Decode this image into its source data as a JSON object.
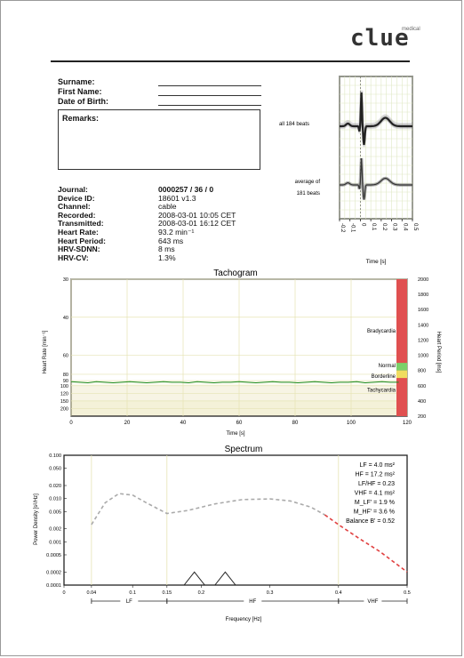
{
  "brand": {
    "logo_text": "clue",
    "logo_sub": "medical"
  },
  "patient": {
    "surname_label": "Surname:",
    "first_name_label": "First Name:",
    "dob_label": "Date of Birth:",
    "remarks_label": "Remarks:"
  },
  "info": [
    {
      "label": "Journal:",
      "value": "0000257 / 36 / 0",
      "bold_value": true
    },
    {
      "label": "Device ID:",
      "value": "18601 v1.3"
    },
    {
      "label": "Channel:",
      "value": "cable"
    },
    {
      "label": "Recorded:",
      "value": "2008-03-01 10:05 CET"
    },
    {
      "label": "Transmitted:",
      "value": "2008-03-01 16:12 CET"
    },
    {
      "label": "Heart Rate:",
      "value": "93.2 min⁻¹"
    },
    {
      "label": "Heart Period:",
      "value": "643 ms"
    },
    {
      "label": "HRV-SDNN:",
      "value": "8 ms"
    },
    {
      "label": "HRV-CV:",
      "value": "1.3%"
    }
  ],
  "beats": {
    "label_all": "all 184 beats",
    "label_avg_1": "average of",
    "label_avg_2": "181 beats",
    "xlabel": "Time [s]",
    "xticks": [
      "-0.2",
      "-0.1",
      "0",
      "0.1",
      "0.2",
      "0.3",
      "0.4",
      "0.5"
    ]
  },
  "tachogram": {
    "title": "Tachogram",
    "xlabel": "Time [s]",
    "ylabel_left": "Heart Rate [min⁻¹]",
    "ylabel_right": "Heart Period [ms]",
    "zones": [
      "Bradycardia",
      "Normal",
      "Borderline",
      "Tachycardia"
    ]
  },
  "spectrum": {
    "title": "Spectrum",
    "xlabel": "Frequency [Hz]",
    "ylabel": "Power Density [s²/Hz]",
    "bands": [
      "LF",
      "HF",
      "VHF"
    ],
    "stats": [
      {
        "id": "lf",
        "text": "LF = 4.0 ms²"
      },
      {
        "id": "hf",
        "text": "HF = 17.2 ms²"
      },
      {
        "id": "lfhf",
        "text": "LF/HF = 0.23"
      },
      {
        "id": "vhf",
        "text": "VHF = 4.1 ms²"
      },
      {
        "id": "mlf",
        "text": "M_LF' = 1.9 %"
      },
      {
        "id": "mhf",
        "text": "M_HF' = 3.6 %"
      },
      {
        "id": "balance",
        "text": "Balance B' = 0.52"
      }
    ]
  },
  "chart_data": [
    {
      "type": "line",
      "title": "Tachogram",
      "xlabel": "Time [s]",
      "ylabel": "Heart Rate [min⁻¹]",
      "xlim": [
        0,
        120
      ],
      "xticks": [
        0,
        20,
        40,
        60,
        80,
        100,
        120
      ],
      "yticks_left": [
        30,
        40,
        60,
        80,
        90,
        100,
        120,
        150,
        200
      ],
      "yticks_right": [
        200,
        400,
        600,
        800,
        1000,
        1200,
        1400,
        1600,
        1800,
        2000
      ],
      "ylim_right": [
        200,
        2000
      ],
      "series": [
        {
          "values": [
            92,
            93,
            94,
            92,
            93,
            94,
            93,
            92,
            93,
            94,
            93,
            92,
            93,
            93,
            94,
            92,
            93,
            94,
            93,
            93,
            92,
            93,
            94,
            93,
            92,
            93,
            93,
            94,
            93,
            92,
            93,
            94,
            93,
            93,
            92,
            94,
            93,
            92,
            93,
            93
          ]
        }
      ]
    },
    {
      "type": "line",
      "title": "Spectrum",
      "xlabel": "Frequency [Hz]",
      "ylabel": "Power Density [s²/Hz]",
      "xlim": [
        0,
        0.5
      ],
      "xticks": [
        0,
        0.04,
        0.1,
        0.15,
        0.2,
        0.3,
        0.4,
        0.5
      ],
      "yscale": "log",
      "ylim": [
        0.0001,
        0.1
      ],
      "yticks": [
        "0.0001",
        "0.0002",
        "0.0005",
        "0.001",
        "0.002",
        "0.005",
        "0.010",
        "0.020",
        "0.050",
        "0.100"
      ],
      "series": [
        {
          "x": [
            0.04,
            0.06,
            0.08,
            0.1,
            0.12,
            0.15,
            0.18,
            0.22,
            0.26,
            0.3,
            0.33,
            0.36,
            0.38
          ],
          "values": [
            0.0025,
            0.008,
            0.013,
            0.012,
            0.008,
            0.0045,
            0.0053,
            0.0075,
            0.0095,
            0.0098,
            0.0088,
            0.0063,
            0.0042
          ]
        },
        {
          "x": [
            0.38,
            0.4,
            0.43,
            0.46,
            0.5
          ],
          "values": [
            0.0042,
            0.0025,
            0.0012,
            0.0006,
            0.0002
          ]
        },
        {
          "x": [
            0.175,
            0.19,
            0.205
          ],
          "values": [
            0.0001,
            0.0002,
            0.0001
          ]
        },
        {
          "x": [
            0.22,
            0.235,
            0.25
          ],
          "values": [
            0.0001,
            0.0002,
            0.0001
          ]
        }
      ]
    }
  ]
}
